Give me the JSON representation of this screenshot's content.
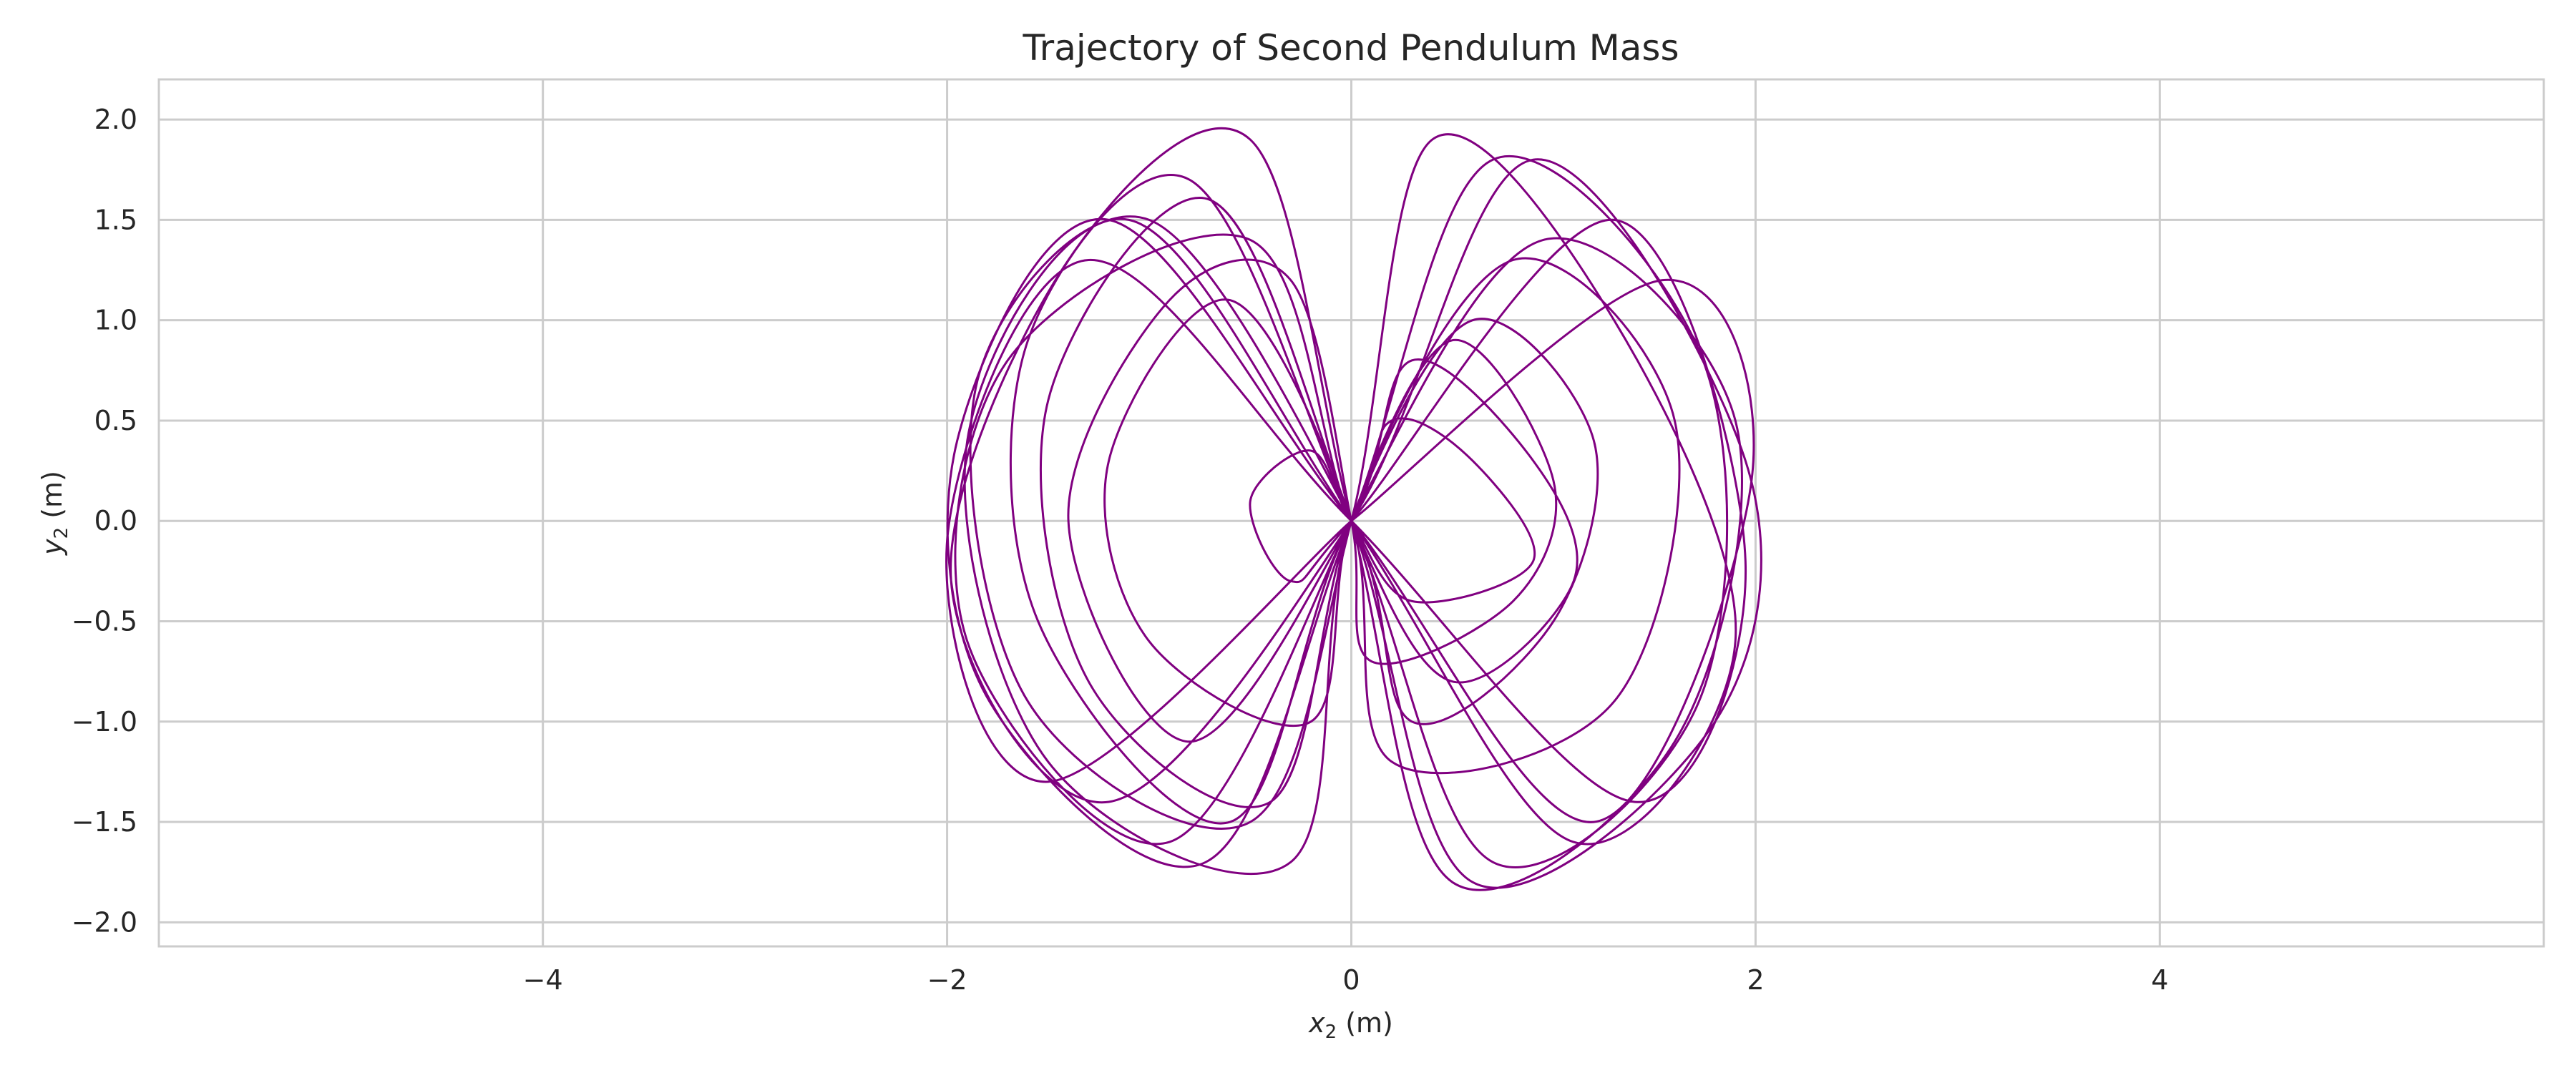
{
  "chart_data": {
    "type": "line",
    "title": "Trajectory of Second Pendulum Mass",
    "xlabel_var": "x",
    "xlabel_sub": "2",
    "xlabel_unit": " (m)",
    "ylabel_var": "y",
    "ylabel_sub": "2",
    "ylabel_unit": " (m)",
    "xlim": [
      -5.9,
      5.9
    ],
    "ylim": [
      -2.12,
      2.2
    ],
    "x_ticks": [
      -4,
      -2,
      0,
      2,
      4
    ],
    "x_tick_labels": [
      "−4",
      "−2",
      "0",
      "2",
      "4"
    ],
    "y_ticks": [
      -2.0,
      -1.5,
      -1.0,
      -0.5,
      0.0,
      0.5,
      1.0,
      1.5,
      2.0
    ],
    "y_tick_labels": [
      "−2.0",
      "−1.5",
      "−1.0",
      "−0.5",
      "0.0",
      "0.5",
      "1.0",
      "1.5",
      "2.0"
    ],
    "grid": true,
    "series_color": "#800080",
    "series": [
      {
        "x": [
          0.0,
          1.54,
          1.98,
          1.2,
          0.0,
          -1.2,
          -1.95,
          -1.79,
          -0.72,
          0.0,
          0.7,
          1.74,
          1.72,
          0.7,
          0.0,
          -0.8,
          -1.6,
          -1.55,
          -0.6,
          0.0,
          0.95,
          1.9,
          1.6,
          0.5,
          0.0,
          -0.5,
          -1.4,
          -1.98,
          -1.2,
          0.0,
          0.9,
          1.95,
          1.8,
          0.6,
          0.0,
          -0.7,
          -1.5,
          -1.3,
          -0.4,
          0.0,
          0.6,
          1.2,
          1.0,
          0.3,
          0.0,
          -1.0,
          -1.85,
          -1.6,
          -0.5,
          0.0,
          0.4,
          1.3,
          1.9,
          1.1,
          0.0,
          -1.1,
          -1.9,
          -1.5,
          -0.3,
          0.0,
          0.8,
          1.6,
          1.3,
          0.2,
          0.0,
          -0.6,
          -1.2,
          -1.0,
          -0.2,
          0.0,
          0.5,
          1.0,
          0.8,
          0.1,
          0.0,
          -0.3,
          -0.9,
          -1.4,
          -0.8,
          0.0,
          0.3,
          0.9,
          1.1,
          0.5,
          0.0,
          -0.5,
          -1.7,
          -1.9,
          -0.9,
          0.0,
          0.2,
          0.6,
          0.9,
          0.3,
          0.0,
          -0.2,
          -0.5,
          -0.3,
          0.0,
          1.3,
          1.95,
          1.4,
          0.0,
          -1.3,
          -2.0,
          -1.5,
          0.0
        ],
        "y": [
          0.0,
          1.2,
          0.2,
          -1.5,
          0.0,
          1.5,
          0.4,
          -0.9,
          -1.7,
          0.0,
          1.8,
          0.8,
          -0.9,
          -1.7,
          0.0,
          1.7,
          0.9,
          -0.5,
          -1.5,
          0.0,
          1.4,
          0.5,
          -1.1,
          -1.8,
          0.0,
          1.9,
          1.3,
          -0.3,
          -1.4,
          0.0,
          1.8,
          0.3,
          -1.0,
          -1.8,
          0.0,
          1.6,
          0.6,
          -0.8,
          -1.4,
          0.0,
          1.0,
          0.4,
          -0.5,
          -1.0,
          0.0,
          1.5,
          0.7,
          -0.9,
          -1.5,
          0.0,
          1.9,
          1.0,
          -0.6,
          -1.6,
          0.0,
          1.5,
          0.4,
          -1.2,
          -1.7,
          0.0,
          1.3,
          0.5,
          -0.9,
          -1.2,
          0.0,
          1.1,
          0.3,
          -0.6,
          -1.0,
          0.0,
          0.9,
          0.2,
          -0.4,
          -0.7,
          0.0,
          1.2,
          1.1,
          0.0,
          -1.1,
          0.0,
          0.8,
          0.3,
          -0.3,
          -0.8,
          0.0,
          1.4,
          0.8,
          -0.6,
          -1.6,
          0.0,
          0.5,
          0.3,
          -0.2,
          -0.4,
          0.0,
          0.35,
          0.1,
          -0.3,
          0.0,
          1.5,
          -0.2,
          -1.4,
          0.0,
          1.3,
          -0.1,
          -1.3,
          0.0
        ]
      }
    ]
  }
}
